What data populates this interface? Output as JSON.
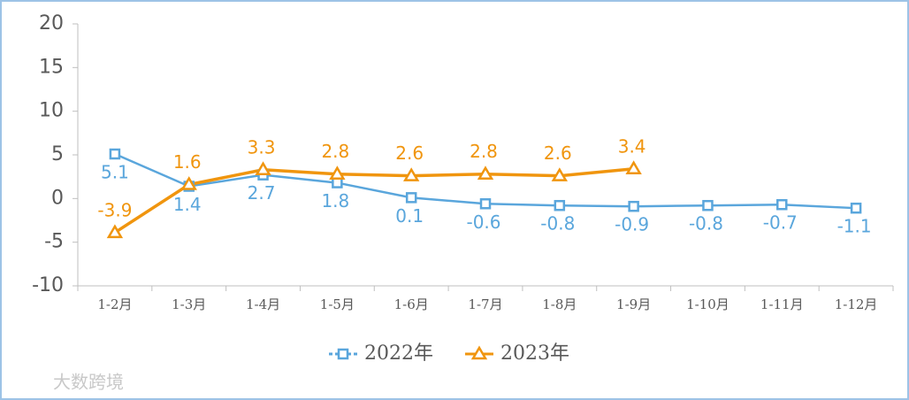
{
  "chart_data": {
    "type": "line",
    "categories": [
      "1-2月",
      "1-3月",
      "1-4月",
      "1-5月",
      "1-6月",
      "1-7月",
      "1-8月",
      "1-9月",
      "1-10月",
      "1-11月",
      "1-12月"
    ],
    "series": [
      {
        "name": "2022年",
        "color": "#5aa6dc",
        "marker": "square",
        "values": [
          5.1,
          1.4,
          2.7,
          1.8,
          0.1,
          -0.6,
          -0.8,
          -0.9,
          -0.8,
          -0.7,
          -1.1
        ]
      },
      {
        "name": "2023年",
        "color": "#f0950e",
        "marker": "triangle",
        "values": [
          -3.9,
          1.6,
          3.3,
          2.8,
          2.6,
          2.8,
          2.6,
          3.4,
          null,
          null,
          null
        ]
      }
    ],
    "ylim": [
      -10,
      20
    ],
    "yticks": [
      -10,
      -5,
      0,
      5,
      10,
      15,
      20
    ],
    "legend": "bottom",
    "watermark": "大数跨境"
  }
}
